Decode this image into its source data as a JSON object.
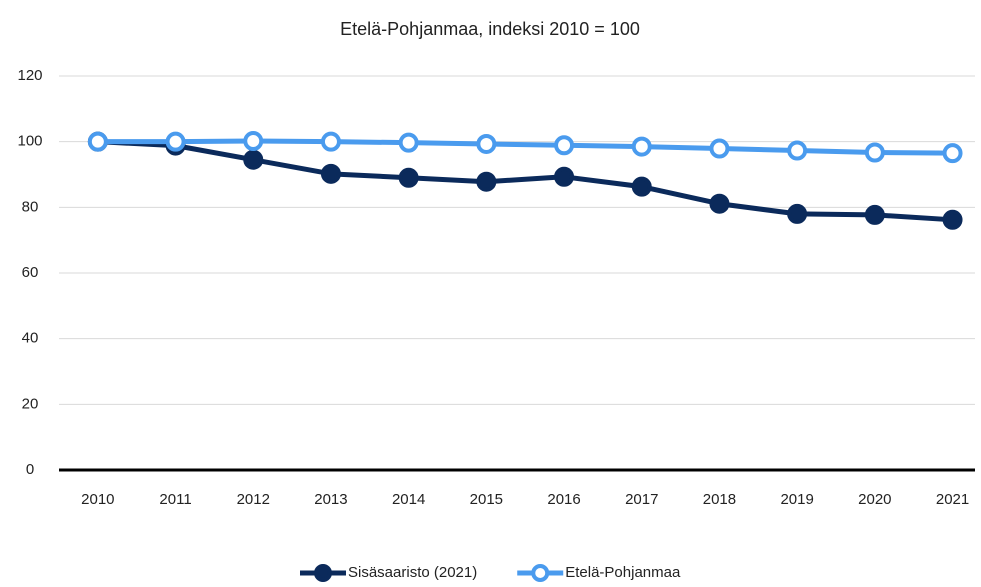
{
  "chart_data": {
    "type": "line",
    "title": "Etelä-Pohjanmaa, indeksi 2010 = 100",
    "categories": [
      "2010",
      "2011",
      "2012",
      "2013",
      "2014",
      "2015",
      "2016",
      "2017",
      "2018",
      "2019",
      "2020",
      "2021"
    ],
    "series": [
      {
        "name": "Sisäsaaristo (2021)",
        "color": "#0b2a5b",
        "marker": "filled",
        "values": [
          100,
          98.8,
          94.5,
          90.2,
          89,
          87.8,
          89.3,
          86.3,
          81.1,
          78,
          77.7,
          76.2
        ]
      },
      {
        "name": "Etelä-Pohjanmaa",
        "color": "#4a9bee",
        "marker": "hollow",
        "values": [
          100,
          100,
          100.2,
          100,
          99.7,
          99.3,
          98.9,
          98.5,
          97.9,
          97.3,
          96.7,
          96.5
        ]
      }
    ],
    "ylim": [
      0,
      120
    ],
    "yticks": [
      0,
      20,
      40,
      60,
      80,
      100,
      120
    ],
    "grid": true,
    "legend": "bottom"
  }
}
